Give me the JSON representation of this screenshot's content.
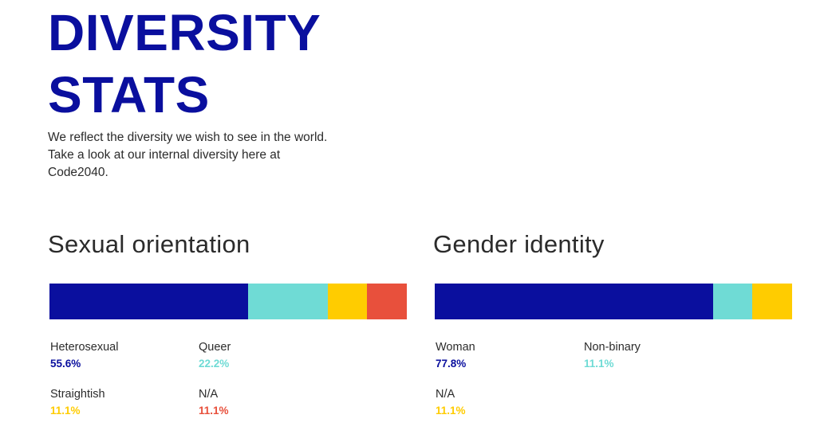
{
  "page": {
    "title_line1": "DIVERSITY",
    "title_line2": "STATS",
    "intro": "We reflect the diversity we wish to see in the world. Take a look at our internal diversity here at Code2040."
  },
  "colors": {
    "navy": "#0a0f9e",
    "teal": "#6fdbd5",
    "yellow": "#ffcc00",
    "red": "#e8503c"
  },
  "sexual_orientation": {
    "heading": "Sexual orientation",
    "items": [
      {
        "label": "Heterosexual",
        "value": "55.6%",
        "fraction": 0.556,
        "color": "#0a0f9e"
      },
      {
        "label": "Queer",
        "value": "22.2%",
        "fraction": 0.222,
        "color": "#6fdbd5"
      },
      {
        "label": "Straightish",
        "value": "11.1%",
        "fraction": 0.111,
        "color": "#ffcc00"
      },
      {
        "label": "N/A",
        "value": "11.1%",
        "fraction": 0.111,
        "color": "#e8503c"
      }
    ]
  },
  "gender_identity": {
    "heading": "Gender identity",
    "items": [
      {
        "label": "Woman",
        "value": "77.8%",
        "fraction": 0.778,
        "color": "#0a0f9e"
      },
      {
        "label": "Non-binary",
        "value": "11.1%",
        "fraction": 0.111,
        "color": "#6fdbd5"
      },
      {
        "label": "N/A",
        "value": "11.1%",
        "fraction": 0.111,
        "color": "#ffcc00"
      }
    ]
  }
}
